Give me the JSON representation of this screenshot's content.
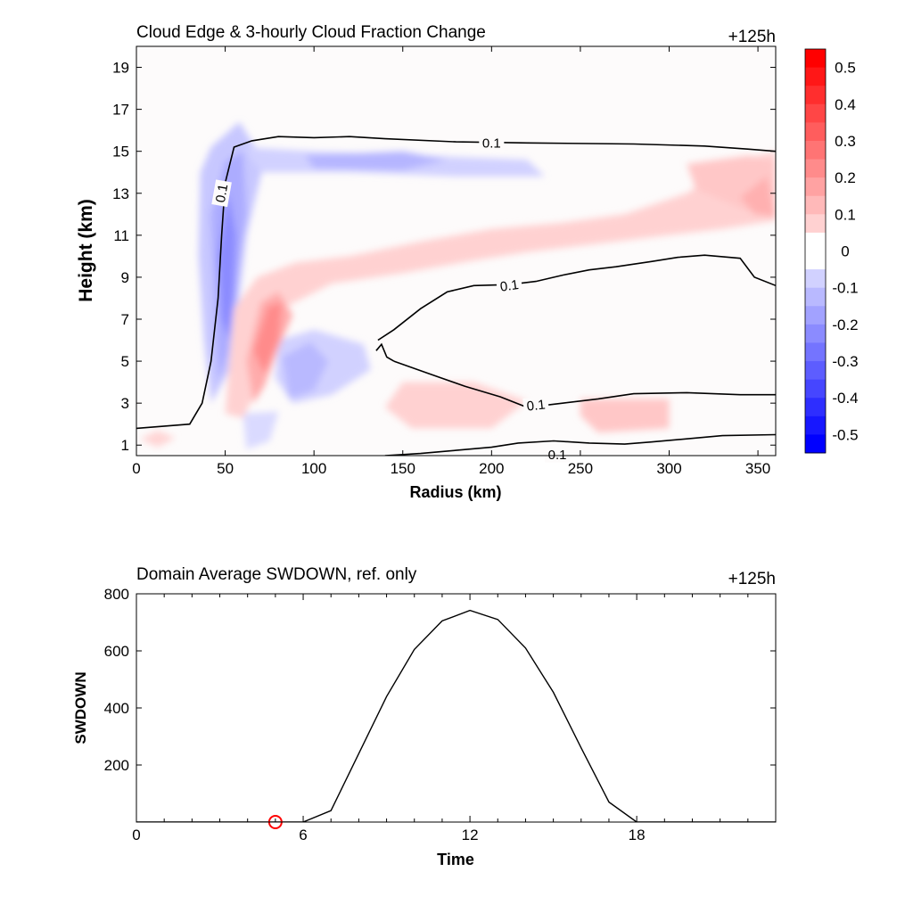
{
  "chart_data": [
    {
      "type": "contour",
      "title": "Cloud Edge & 3-hourly Cloud Fraction Change",
      "time_label": "+125h",
      "xlabel": "Radius (km)",
      "ylabel": "Height (km)",
      "xlim": [
        0,
        360
      ],
      "ylim": [
        0.5,
        20
      ],
      "xticks": [
        0,
        50,
        100,
        150,
        200,
        250,
        300,
        350
      ],
      "yticks": [
        1,
        3,
        5,
        7,
        9,
        11,
        13,
        15,
        17,
        19
      ],
      "colorbar": {
        "range": [
          -0.55,
          0.55
        ],
        "ticks": [
          "0.5",
          "0.4",
          "0.3",
          "0.2",
          "0.1",
          "0",
          "-0.1",
          "-0.2",
          "-0.3",
          "-0.4",
          "-0.5"
        ],
        "neg_color": "#0000ff",
        "pos_color": "#ff0000"
      },
      "contour_level_label": "0.1",
      "contours": [
        {
          "points": [
            [
              0,
              1.8
            ],
            [
              30,
              2.0
            ],
            [
              37,
              3.0
            ],
            [
              42,
              5.0
            ],
            [
              46,
              8.0
            ],
            [
              48,
              11.0
            ],
            [
              50,
              13.5
            ],
            [
              55,
              15.2
            ],
            [
              65,
              15.5
            ],
            [
              80,
              15.7
            ],
            [
              100,
              15.65
            ],
            [
              120,
              15.7
            ],
            [
              140,
              15.6
            ],
            [
              180,
              15.45
            ],
            [
              220,
              15.4
            ],
            [
              280,
              15.35
            ],
            [
              320,
              15.25
            ],
            [
              345,
              15.1
            ],
            [
              360,
              15.0
            ]
          ]
        },
        {
          "points": [
            [
              136,
              6.0
            ],
            [
              145,
              6.5
            ],
            [
              160,
              7.5
            ],
            [
              175,
              8.3
            ],
            [
              190,
              8.6
            ],
            [
              210,
              8.65
            ],
            [
              225,
              8.8
            ],
            [
              240,
              9.1
            ],
            [
              255,
              9.35
            ],
            [
              270,
              9.5
            ],
            [
              290,
              9.75
            ],
            [
              305,
              9.95
            ],
            [
              320,
              10.05
            ],
            [
              340,
              9.9
            ],
            [
              348,
              9.0
            ],
            [
              360,
              8.6
            ]
          ]
        },
        {
          "points": [
            [
              145,
              5.0
            ],
            [
              165,
              4.4
            ],
            [
              185,
              3.8
            ],
            [
              205,
              3.3
            ],
            [
              220,
              2.8
            ],
            [
              240,
              3.0
            ],
            [
              260,
              3.2
            ],
            [
              280,
              3.45
            ],
            [
              310,
              3.5
            ],
            [
              340,
              3.4
            ],
            [
              360,
              3.4
            ]
          ]
        },
        {
          "points": [
            [
              140,
              0.5
            ],
            [
              160,
              0.6
            ],
            [
              180,
              0.75
            ],
            [
              200,
              0.9
            ],
            [
              215,
              1.1
            ],
            [
              235,
              1.2
            ],
            [
              255,
              1.1
            ],
            [
              275,
              1.05
            ],
            [
              290,
              1.15
            ],
            [
              310,
              1.3
            ],
            [
              330,
              1.45
            ],
            [
              360,
              1.5
            ]
          ]
        },
        {
          "points": [
            [
              135,
              5.5
            ],
            [
              138,
              5.8
            ],
            [
              141,
              5.2
            ],
            [
              145,
              5.0
            ]
          ]
        }
      ],
      "contour_label_positions": [
        {
          "x": 200,
          "y": 15.4
        },
        {
          "x": 48,
          "y": 13.0
        },
        {
          "x": 210,
          "y": 8.6
        },
        {
          "x": 225,
          "y": 2.9
        },
        {
          "x": 237,
          "y": 0.55
        }
      ],
      "fill_regions": [
        {
          "value": -0.12,
          "poly": [
            [
              36,
              14
            ],
            [
              42,
              15.2
            ],
            [
              58,
              16.4
            ],
            [
              72,
              14.5
            ],
            [
              62,
              11
            ],
            [
              58,
              8
            ],
            [
              52,
              4.5
            ],
            [
              42,
              3
            ],
            [
              38,
              6
            ],
            [
              35,
              10
            ]
          ]
        },
        {
          "value": -0.18,
          "poly": [
            [
              42,
              12
            ],
            [
              50,
              14.5
            ],
            [
              60,
              15
            ],
            [
              62,
              12
            ],
            [
              57,
              9
            ],
            [
              52,
              5.5
            ],
            [
              46,
              4
            ],
            [
              44,
              8
            ]
          ]
        },
        {
          "value": -0.25,
          "poly": [
            [
              46,
              10
            ],
            [
              52,
              13
            ],
            [
              56,
              11
            ],
            [
              55,
              8
            ],
            [
              52,
              6
            ],
            [
              48,
              7
            ]
          ]
        },
        {
          "value": -0.1,
          "poly": [
            [
              60,
              15.2
            ],
            [
              100,
              15.0
            ],
            [
              160,
              14.8
            ],
            [
              220,
              14.6
            ],
            [
              230,
              13.8
            ],
            [
              180,
              13.8
            ],
            [
              120,
              14.0
            ],
            [
              70,
              14.0
            ]
          ]
        },
        {
          "value": -0.16,
          "poly": [
            [
              95,
              14.8
            ],
            [
              150,
              15.0
            ],
            [
              175,
              14.6
            ],
            [
              150,
              14.1
            ],
            [
              100,
              14.2
            ]
          ]
        },
        {
          "value": -0.1,
          "poly": [
            [
              80,
              6
            ],
            [
              100,
              6.5
            ],
            [
              128,
              5.8
            ],
            [
              132,
              4.6
            ],
            [
              110,
              3.4
            ],
            [
              88,
              3.0
            ],
            [
              78,
              4.2
            ]
          ]
        },
        {
          "value": -0.15,
          "poly": [
            [
              82,
              5.2
            ],
            [
              98,
              5.9
            ],
            [
              108,
              5
            ],
            [
              100,
              3.6
            ],
            [
              86,
              3.2
            ]
          ]
        },
        {
          "value": -0.08,
          "poly": [
            [
              60,
              2.5
            ],
            [
              80,
              2.6
            ],
            [
              75,
              1.2
            ],
            [
              62,
              0.8
            ]
          ]
        },
        {
          "value": 0.1,
          "poly": [
            [
              55,
              7.5
            ],
            [
              68,
              9.0
            ],
            [
              90,
              9.7
            ],
            [
              120,
              10.0
            ],
            [
              160,
              10.7
            ],
            [
              200,
              11.3
            ],
            [
              240,
              11.6
            ],
            [
              275,
              12.0
            ],
            [
              310,
              13.0
            ],
            [
              340,
              14.6
            ],
            [
              360,
              15.0
            ],
            [
              360,
              11.7
            ],
            [
              330,
              11.3
            ],
            [
              300,
              11.0
            ],
            [
              260,
              10.6
            ],
            [
              220,
              10.2
            ],
            [
              190,
              9.8
            ],
            [
              150,
              9.2
            ],
            [
              110,
              8.7
            ],
            [
              82,
              7.5
            ],
            [
              70,
              4.0
            ],
            [
              60,
              2.3
            ],
            [
              50,
              2.5
            ]
          ]
        },
        {
          "value": 0.18,
          "poly": [
            [
              62,
              5.0
            ],
            [
              70,
              7.8
            ],
            [
              80,
              8.3
            ],
            [
              88,
              7.2
            ],
            [
              80,
              5.6
            ],
            [
              72,
              3.8
            ],
            [
              66,
              3.0
            ]
          ]
        },
        {
          "value": 0.25,
          "poly": [
            [
              66,
              5.5
            ],
            [
              74,
              7.6
            ],
            [
              82,
              7.8
            ],
            [
              80,
              6.0
            ],
            [
              72,
              4.4
            ]
          ]
        },
        {
          "value": 0.12,
          "poly": [
            [
              310,
              14.4
            ],
            [
              345,
              14.8
            ],
            [
              360,
              14.5
            ],
            [
              360,
              11.8
            ],
            [
              340,
              12.3
            ],
            [
              315,
              13.2
            ]
          ]
        },
        {
          "value": 0.17,
          "poly": [
            [
              340,
              12.8
            ],
            [
              355,
              13.8
            ],
            [
              360,
              11.9
            ],
            [
              348,
              12.0
            ]
          ]
        },
        {
          "value": 0.1,
          "poly": [
            [
              150,
              4.0
            ],
            [
              190,
              4.0
            ],
            [
              220,
              3.1
            ],
            [
              200,
              1.8
            ],
            [
              155,
              1.8
            ],
            [
              140,
              2.8
            ]
          ]
        },
        {
          "value": 0.09,
          "poly": [
            [
              2,
              1.3
            ],
            [
              12,
              1.7
            ],
            [
              22,
              1.35
            ],
            [
              12,
              0.9
            ]
          ]
        },
        {
          "value": 0.12,
          "poly": [
            [
              250,
              3.2
            ],
            [
              300,
              3.2
            ],
            [
              300,
              1.8
            ],
            [
              260,
              1.6
            ],
            [
              250,
              2.4
            ]
          ]
        }
      ]
    },
    {
      "type": "line",
      "title": "Domain Average SWDOWN, ref. only",
      "time_label": "+125h",
      "xlabel": "Time",
      "ylabel": "SWDOWN",
      "xlim": [
        0,
        23
      ],
      "ylim": [
        0,
        800
      ],
      "xticks": [
        0,
        6,
        12,
        18
      ],
      "yticks": [
        200,
        400,
        600,
        800
      ],
      "x": [
        0,
        1,
        2,
        3,
        4,
        5,
        6,
        7,
        8,
        9,
        10,
        11,
        12,
        13,
        14,
        15,
        16,
        17,
        18,
        19,
        20,
        21,
        22,
        23
      ],
      "values": [
        0,
        0,
        0,
        0,
        0,
        0,
        0,
        40,
        240,
        440,
        605,
        705,
        742,
        710,
        610,
        455,
        260,
        70,
        0,
        0,
        0,
        0,
        0,
        0
      ],
      "marker": {
        "x": 5,
        "y": 0,
        "color": "#ff0000"
      }
    }
  ]
}
